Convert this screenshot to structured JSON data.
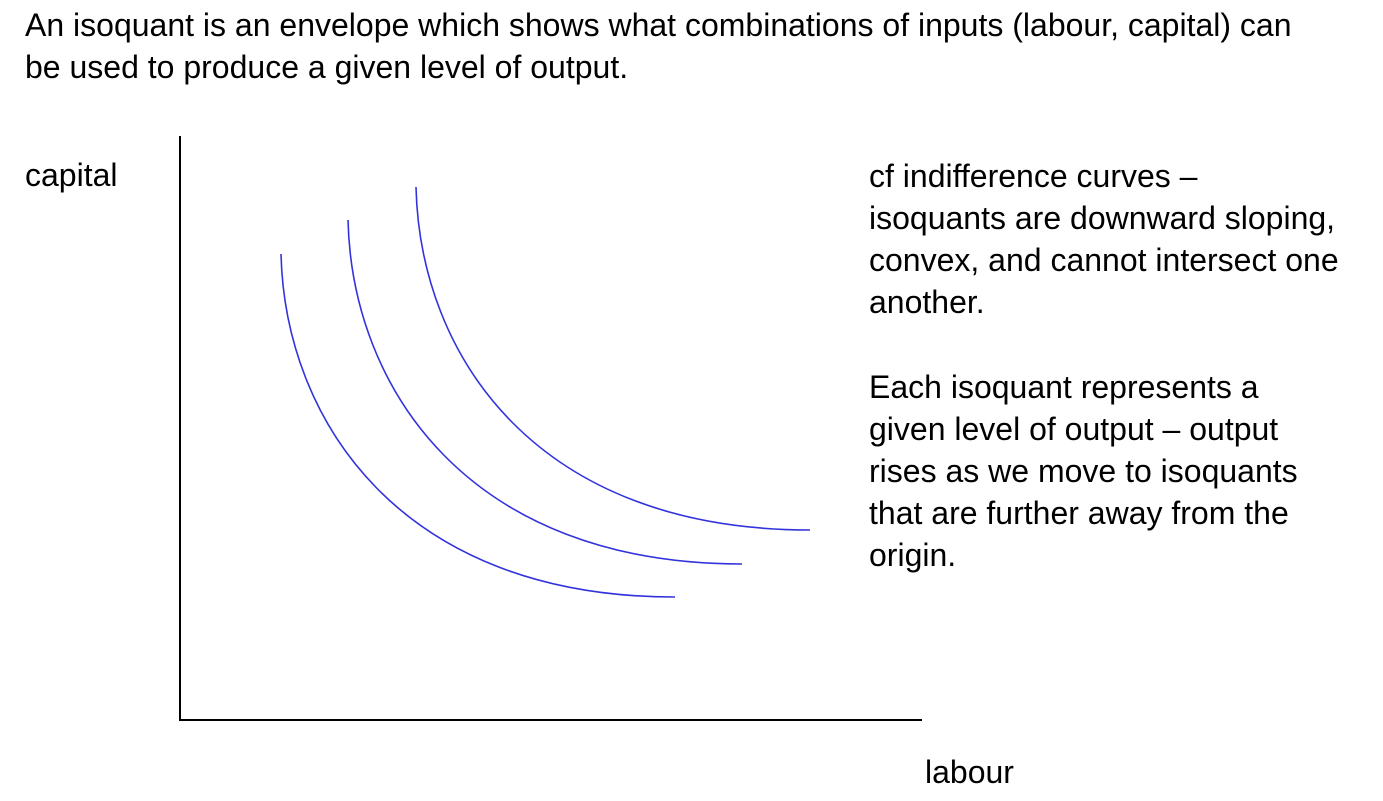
{
  "intro_text": "An isoquant is an envelope which shows what combinations of inputs (labour, capital) can be used to produce a given level of output.",
  "axes": {
    "y_label": "capital",
    "x_label": "labour",
    "axis_color": "#000000"
  },
  "isoquants": {
    "count": 3,
    "color": "#3333dd"
  },
  "notes": [
    "cf indifference curves – isoquants are downward sloping, convex, and cannot intersect one another.",
    "Each isoquant represents a given level of output – output rises as we move to isoquants that are further away from the origin."
  ]
}
